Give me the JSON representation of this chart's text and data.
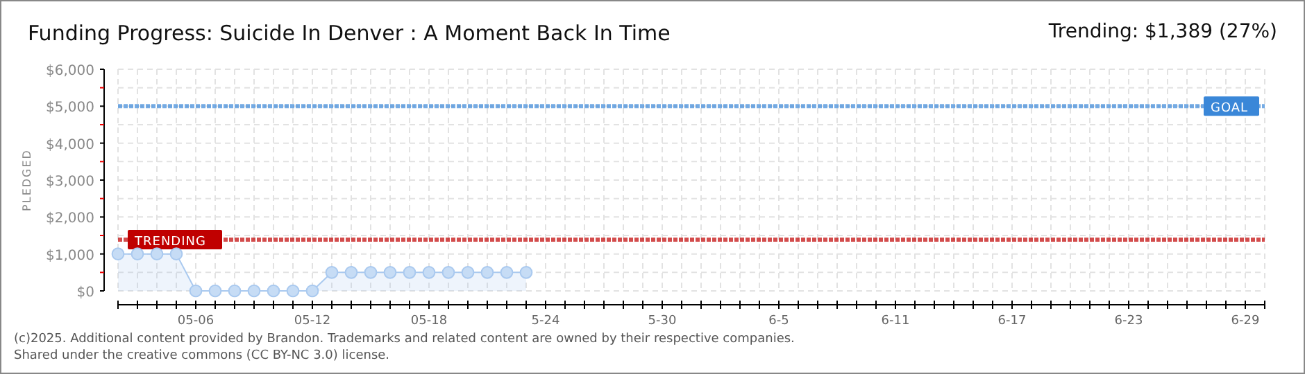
{
  "chart_data": {
    "type": "area",
    "title": "Funding Progress: Suicide In Denver : A Moment Back In Time",
    "subtitle": "Trending: $1,389 (27%)",
    "ylabel": "PLEDGED",
    "annotations": [
      "(c)2025. Additional content provided by Brandon. Trademarks and related content are owned by their respective companies.",
      "Shared under the creative commons (CC BY-NC 3.0) license."
    ],
    "x": [
      "--05-02",
      "--05-03",
      "--05-04",
      "--05-05",
      "--05-06",
      "--05-07",
      "--05-08",
      "--05-09",
      "--05-10",
      "--05-11",
      "--05-12",
      "--05-13",
      "--05-14",
      "--05-15",
      "--05-16",
      "--05-17",
      "--05-18",
      "--05-19",
      "--05-20",
      "--05-21",
      "--05-22",
      "--05-23"
    ],
    "series": [
      {
        "color": "#a9c9ef",
        "values": [
          1000,
          1000,
          1000,
          1000,
          0,
          0,
          0,
          0,
          0,
          0,
          0,
          500,
          500,
          500,
          500,
          500,
          500,
          500,
          500,
          500,
          500,
          500
        ]
      }
    ],
    "marker": "circle",
    "grid": true,
    "xlim": [
      "--05-02",
      "--06-30"
    ],
    "xticks": [
      {
        "value": "--05-06",
        "label": "05-06"
      },
      {
        "value": "--05-12",
        "label": "05-12"
      },
      {
        "value": "--05-18",
        "label": "05-18"
      },
      {
        "value": "--05-24",
        "label": "5-24"
      },
      {
        "value": "--05-30",
        "label": "5-30"
      },
      {
        "value": "--06-05",
        "label": "6-5"
      },
      {
        "value": "--06-11",
        "label": "6-11"
      },
      {
        "value": "--06-17",
        "label": "6-17"
      },
      {
        "value": "--06-23",
        "label": "6-23"
      },
      {
        "value": "--06-29",
        "label": "6-29"
      }
    ],
    "ylim": [
      0,
      6000
    ],
    "yticks": [
      {
        "value": 0,
        "label": "$0"
      },
      {
        "value": 500,
        "label": null
      },
      {
        "value": 1000,
        "label": "$1,000"
      },
      {
        "value": 1500,
        "label": null
      },
      {
        "value": 2000,
        "label": "$2,000"
      },
      {
        "value": 2500,
        "label": null
      },
      {
        "value": 3000,
        "label": "$3,000"
      },
      {
        "value": 3500,
        "label": null
      },
      {
        "value": 4000,
        "label": "$4,000"
      },
      {
        "value": 4500,
        "label": null
      },
      {
        "value": 5000,
        "label": "$5,000"
      },
      {
        "value": 5500,
        "label": null
      },
      {
        "value": 6000,
        "label": "$6,000"
      }
    ],
    "ref_lines": [
      {
        "axis": "y",
        "value": 5000,
        "label": "GOAL",
        "color": "#3a87d8",
        "line_style": "dotted"
      },
      {
        "axis": "y",
        "value": 1389,
        "label": "TRENDING",
        "color": "#c00000",
        "line_style": "dotted"
      }
    ]
  }
}
